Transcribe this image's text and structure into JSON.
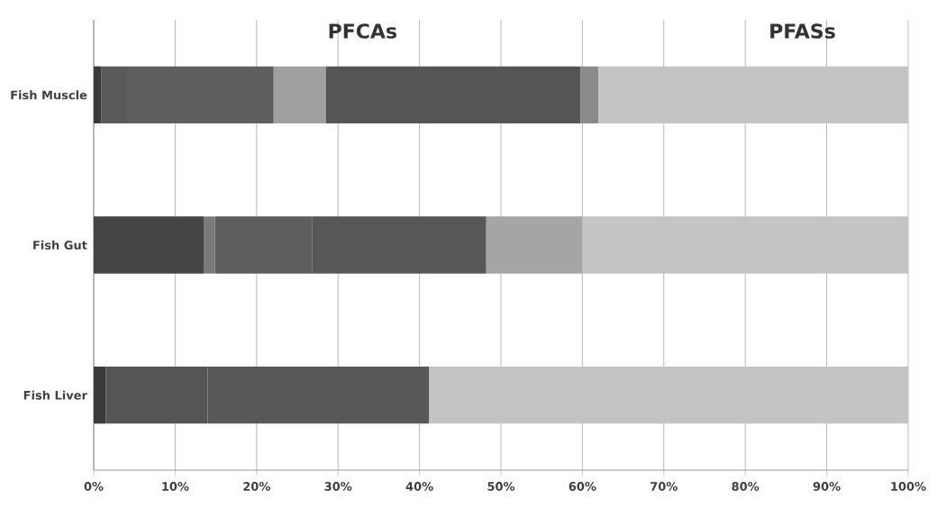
{
  "chart_data": {
    "type": "bar",
    "orientation": "horizontal",
    "stacked": true,
    "grid": "x",
    "categories": [
      "Fish Muscle",
      "Fish Gut",
      "Fish Liver"
    ],
    "xlim": [
      0,
      100
    ],
    "xticks": [
      {
        "value": 0,
        "label": "0%"
      },
      {
        "value": 10,
        "label": "10%"
      },
      {
        "value": 20,
        "label": "20%"
      },
      {
        "value": 30,
        "label": "30%"
      },
      {
        "value": 40,
        "label": "40%"
      },
      {
        "value": 50,
        "label": "50%"
      },
      {
        "value": 60,
        "label": "60%"
      },
      {
        "value": 70,
        "label": "70%"
      },
      {
        "value": 80,
        "label": "80%"
      },
      {
        "value": 90,
        "label": "90%"
      },
      {
        "value": 100,
        "label": "100%"
      }
    ],
    "annotations": [
      "PFCAs",
      "PFASs"
    ],
    "series": [
      {
        "values": [
          0.9,
          13.5,
          1.5
        ],
        "colors": [
          "#3a3a3a",
          "#444444",
          "#3a3a3a"
        ]
      },
      {
        "values": [
          3.3,
          1.4,
          12.5
        ],
        "colors": [
          "#5a5a5a",
          "#7a7a7a",
          "#555555"
        ]
      },
      {
        "values": [
          17.9,
          11.9,
          27.2
        ],
        "colors": [
          "#5f5f5f",
          "#5e5e5e",
          "#585858"
        ]
      },
      {
        "values": [
          6.4,
          21.4,
          58.8
        ],
        "colors": [
          "#a0a0a0",
          "#575757",
          "#c4c4c4"
        ]
      },
      {
        "values": [
          31.3,
          11.8,
          null
        ],
        "colors": [
          "#555555",
          "#a5a5a5",
          "#c4c4c4"
        ]
      },
      {
        "values": [
          2.2,
          40.0,
          null
        ],
        "colors": [
          "#8a8a8a",
          "#c4c4c4",
          "#c4c4c4"
        ]
      },
      {
        "values": [
          38.0,
          null,
          null
        ],
        "colors": [
          "#c4c4c4",
          "#c4c4c4",
          "#c4c4c4"
        ]
      }
    ]
  }
}
